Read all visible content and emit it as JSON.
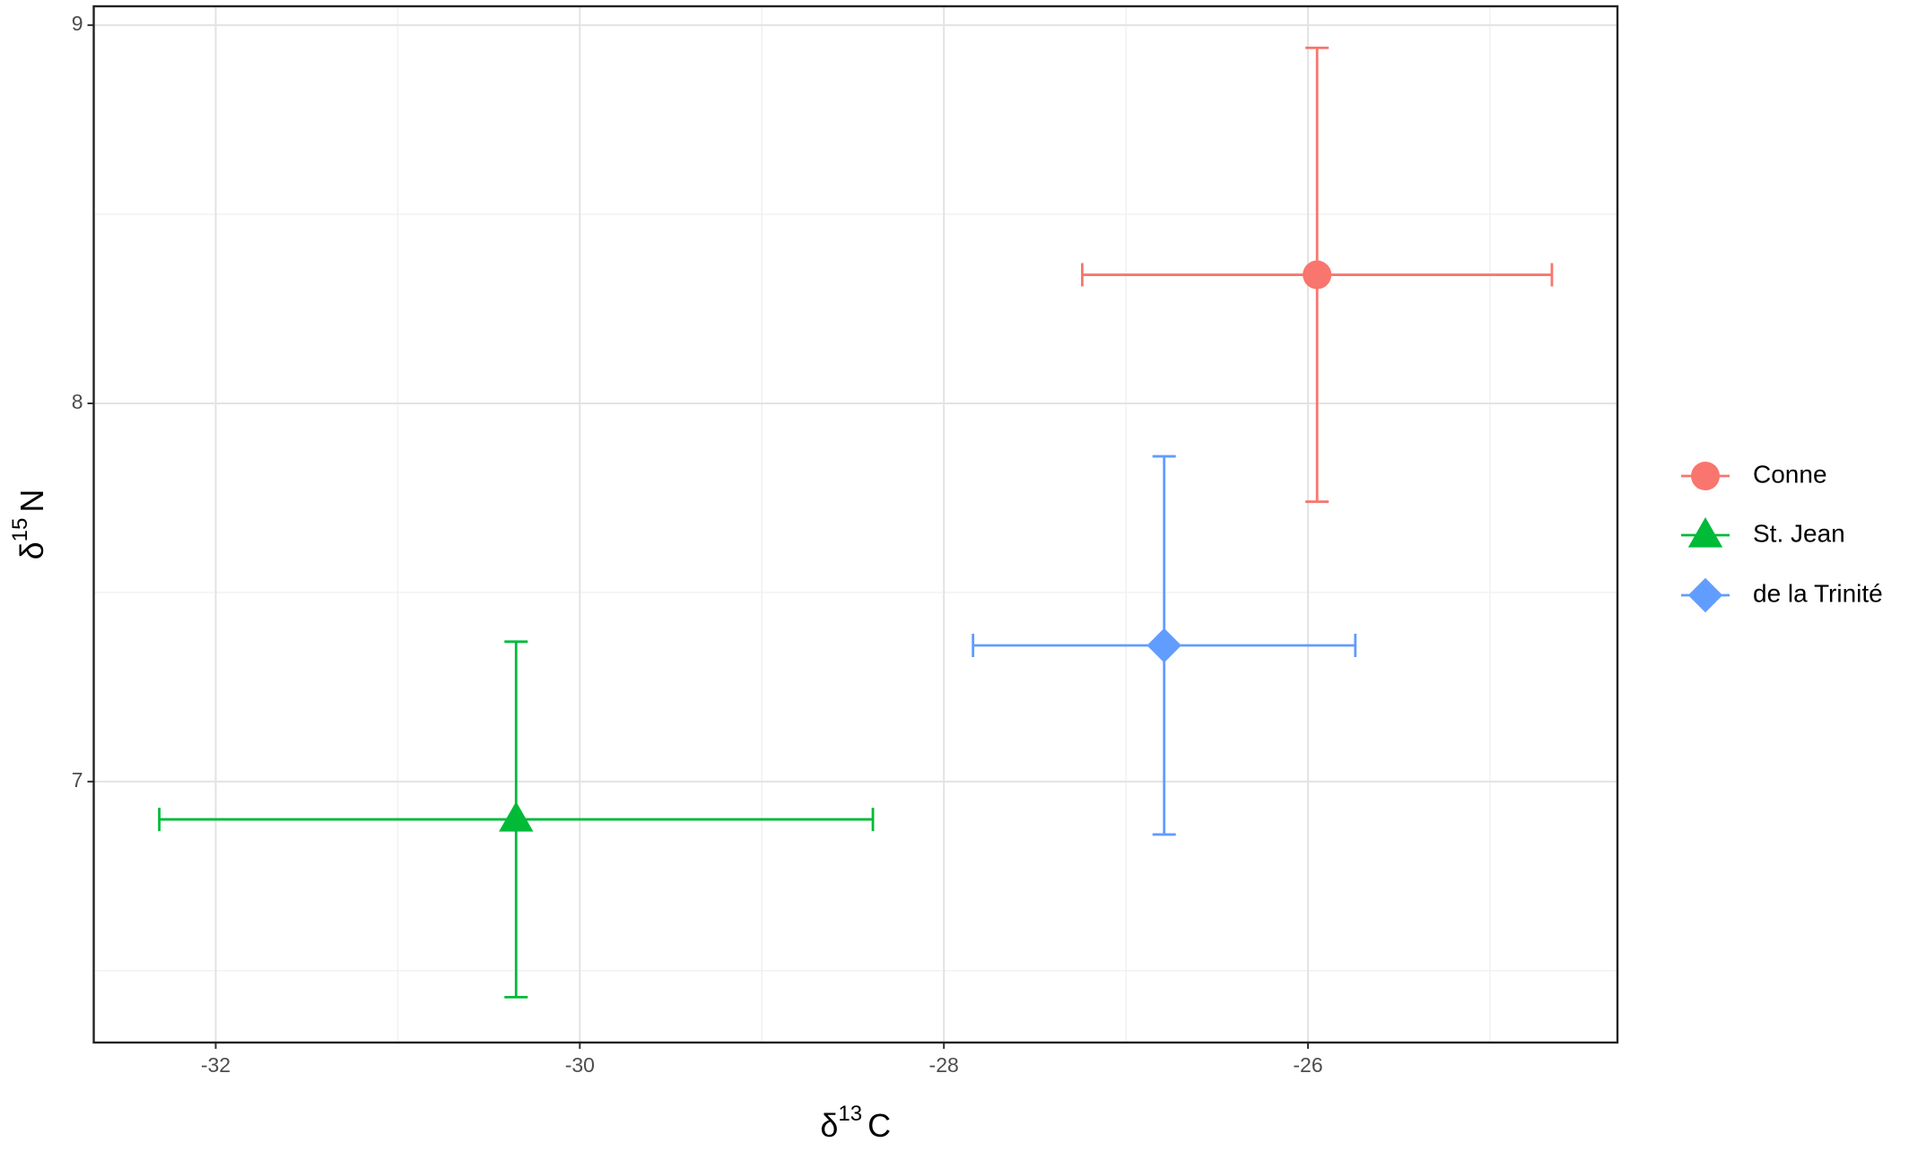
{
  "chart_data": {
    "type": "errorbar_scatter",
    "x_label": [
      "δ",
      "13",
      "C"
    ],
    "y_label": [
      "δ",
      "15",
      "N"
    ],
    "xlim": [
      -32.67,
      -24.3
    ],
    "ylim": [
      6.31,
      9.05
    ],
    "xticks": [
      -32,
      -30,
      -28,
      -26
    ],
    "yticks": [
      7,
      8,
      9
    ],
    "x_minor_grid": [
      -31,
      -29,
      -27,
      -25
    ],
    "y_minor_grid": [
      6.5,
      7.5,
      8.5
    ],
    "grid": true,
    "legend": "right",
    "series": [
      {
        "name": "Conne",
        "color": "#F8766D",
        "shape": "circle",
        "x": -25.95,
        "y": 8.34,
        "xerr": 1.29,
        "yerr": 0.6
      },
      {
        "name": "St. Jean",
        "color": "#00BA38",
        "shape": "triangle",
        "x": -30.35,
        "y": 6.9,
        "xerr": 1.96,
        "yerr": 0.47
      },
      {
        "name": "de la Trinité",
        "color": "#619CFF",
        "shape": "diamond",
        "x": -26.79,
        "y": 7.36,
        "xerr": 1.05,
        "yerr": 0.5
      }
    ]
  }
}
